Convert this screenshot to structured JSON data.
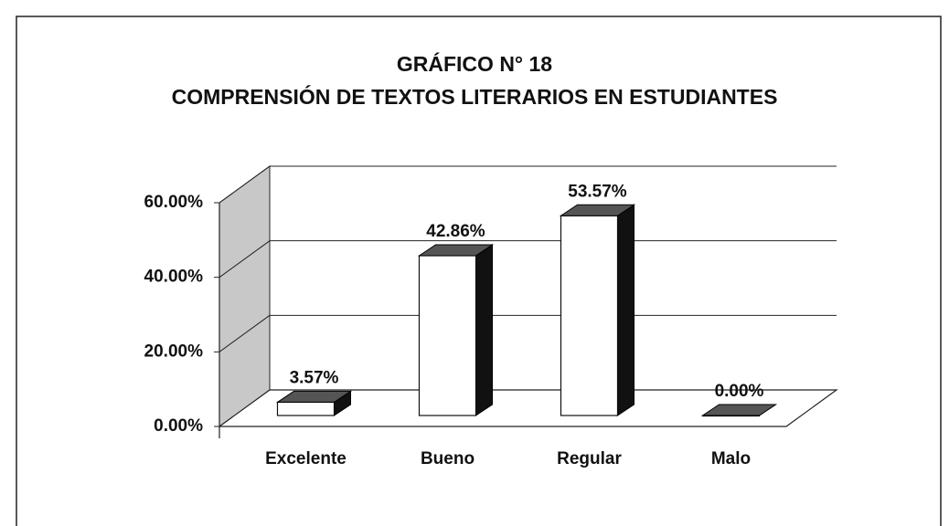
{
  "chart_data": {
    "type": "bar3d",
    "title": "GRÁFICO N° 18",
    "subtitle": "COMPRENSIÓN DE TEXTOS LITERARIOS EN ESTUDIANTES",
    "categories": [
      "Excelente",
      "Bueno",
      "Regular",
      "Malo"
    ],
    "values": [
      3.57,
      42.86,
      53.57,
      0
    ],
    "value_labels": [
      "3.57%",
      "42.86%",
      "53.57%",
      "0.00%"
    ],
    "ylim": [
      0,
      60
    ],
    "yticks": [
      {
        "value": 0,
        "label": "0.00%"
      },
      {
        "value": 20,
        "label": "20.00%"
      },
      {
        "value": 40,
        "label": "40.00%"
      },
      {
        "value": 60,
        "label": "60.00%"
      }
    ],
    "grid": true,
    "color": "#ffffff"
  }
}
